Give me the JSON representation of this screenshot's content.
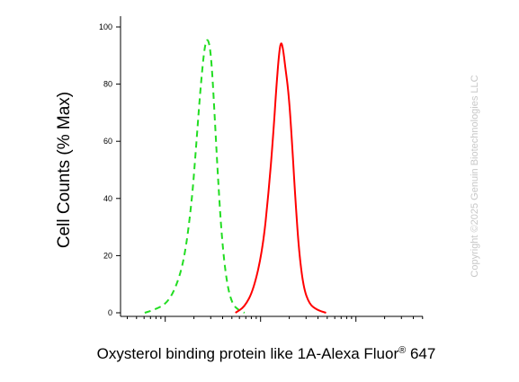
{
  "chart_data": {
    "type": "line",
    "xlabel": "Oxysterol binding protein like 1A-Alexa Fluor",
    "xlabel_sup": "®",
    "xlabel_suffix": " 647",
    "ylabel": "Cell Counts (% Max)",
    "ylim": [
      0,
      100
    ],
    "xlim": [
      0,
      1
    ],
    "x_scale": "log",
    "yticks": [
      "0",
      "20",
      "40",
      "60",
      "80",
      "100"
    ],
    "grid": false,
    "legend": "none",
    "series": [
      {
        "style": "dashed",
        "color": "#22dd22",
        "x": [
          0.08,
          0.11,
          0.15,
          0.18,
          0.21,
          0.235,
          0.25,
          0.262,
          0.272,
          0.28,
          0.288,
          0.296,
          0.303,
          0.312,
          0.322,
          0.335,
          0.352,
          0.37,
          0.39,
          0.41
        ],
        "y": [
          0,
          1,
          3,
          8,
          18,
          38,
          58,
          75,
          87,
          94,
          96,
          93,
          85,
          68,
          48,
          26,
          10,
          3,
          1,
          0
        ]
      },
      {
        "style": "solid",
        "color": "#ff0000",
        "x": [
          0.38,
          0.41,
          0.44,
          0.47,
          0.49,
          0.505,
          0.515,
          0.523,
          0.53,
          0.537,
          0.545,
          0.555,
          0.565,
          0.577,
          0.59,
          0.605,
          0.625,
          0.65,
          0.68
        ],
        "y": [
          0,
          2,
          8,
          22,
          42,
          62,
          78,
          89,
          95,
          93,
          86,
          78,
          64,
          42,
          22,
          9,
          3,
          1,
          0
        ]
      }
    ]
  },
  "watermark": "Copyright ©2025 Genuin Biotechnologies LLC"
}
